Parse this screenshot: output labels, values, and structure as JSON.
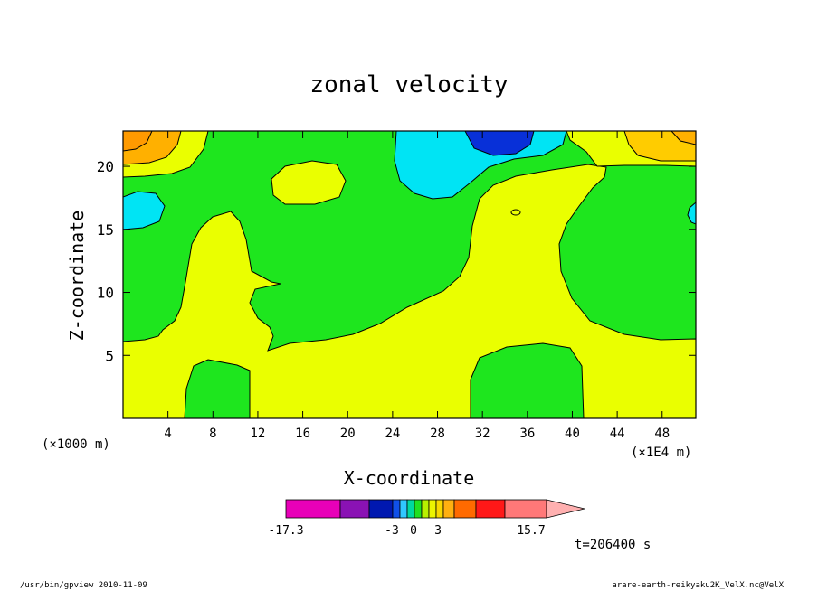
{
  "chart_data": {
    "type": "heatmap",
    "title": "zonal velocity",
    "xlabel": "X-coordinate",
    "ylabel": "Z-coordinate",
    "x_scale_note": "(×1E4 m)",
    "y_scale_note": "(×1000 m)",
    "x_ticks": [
      "4",
      "8",
      "12",
      "16",
      "20",
      "24",
      "28",
      "32",
      "36",
      "40",
      "44",
      "48"
    ],
    "y_ticks": [
      "5",
      "10",
      "15",
      "20"
    ],
    "xlim": [
      0,
      51
    ],
    "ylim": [
      0,
      22.8
    ],
    "time_label": "t=206400 s",
    "colorbar": {
      "labels": [
        "-17.3",
        "-3",
        "0",
        "3",
        "15.7"
      ],
      "colors": [
        "#e800b8",
        "#8a12b4",
        "#0018b0",
        "#1050e8",
        "#30c8ff",
        "#00d8a0",
        "#20e020",
        "#b8f000",
        "#ecf400",
        "#f8d800",
        "#ffb010",
        "#ff6a00",
        "#ff1818",
        "#ff7878",
        "#ffb0b0"
      ]
    },
    "regions": [
      {
        "name": "green",
        "color": "#1ee61e"
      },
      {
        "name": "yellow",
        "color": "#eaff00"
      },
      {
        "name": "cyan",
        "color": "#00e4f4"
      },
      {
        "name": "blue",
        "color": "#0830d8"
      },
      {
        "name": "orange",
        "color": "#ffb000"
      },
      {
        "name": "light-orange",
        "color": "#ffcc00"
      }
    ]
  },
  "footer": {
    "left": "/usr/bin/gpview   2010-11-09",
    "right": "arare-earth-reikyaku2K_VelX.nc@VelX"
  }
}
